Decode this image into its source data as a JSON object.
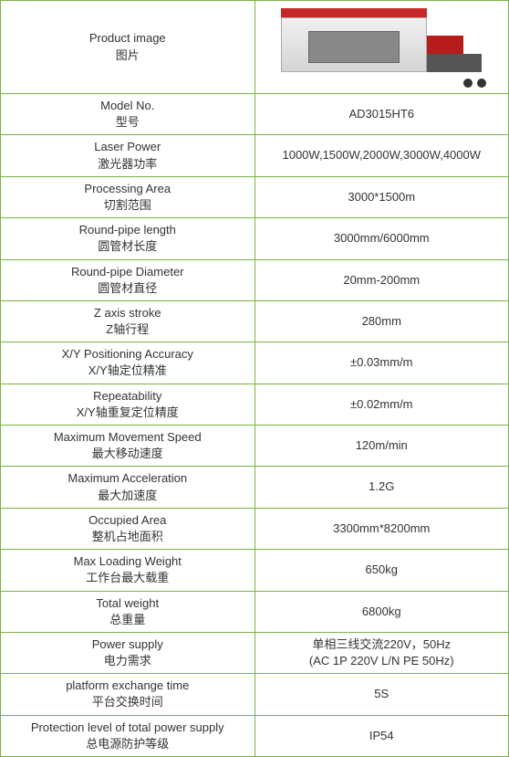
{
  "header": {
    "label_en": "Product image",
    "label_cn": "图片"
  },
  "rows": [
    {
      "en": "Model No.",
      "cn": "型号",
      "value": "AD3015HT6"
    },
    {
      "en": "Laser Power",
      "cn": "激光器功率",
      "value": "1000W,1500W,2000W,3000W,4000W"
    },
    {
      "en": "Processing Area",
      "cn": "切割范围",
      "value": "3000*1500m"
    },
    {
      "en": "Round-pipe length",
      "cn": "圆管材长度",
      "value": "3000mm/6000mm"
    },
    {
      "en": "Round-pipe Diameter",
      "cn": "圆管材直径",
      "value": "20mm-200mm"
    },
    {
      "en": "Z axis stroke",
      "cn": "Z轴行程",
      "value": "280mm"
    },
    {
      "en": "X/Y Positioning Accuracy",
      "cn": "X/Y轴定位精准",
      "value": "±0.03mm/m"
    },
    {
      "en": "Repeatability",
      "cn": "X/Y轴重复定位精度",
      "value": "±0.02mm/m"
    },
    {
      "en": "Maximum Movement Speed",
      "cn": "最大移动速度",
      "value": "120m/min"
    },
    {
      "en": "Maximum Acceleration",
      "cn": "最大加速度",
      "value": "1.2G"
    },
    {
      "en": "Occupied Area",
      "cn": "整机占地面积",
      "value": "3300mm*8200mm"
    },
    {
      "en": "Max Loading Weight",
      "cn": "工作台最大载重",
      "value": "650kg"
    },
    {
      "en": "Total weight",
      "cn": "总重量",
      "value": "6800kg"
    },
    {
      "en": "Power supply",
      "cn": "电力需求",
      "value": "单相三线交流220V，50Hz\n(AC 1P 220V L/N PE 50Hz)"
    },
    {
      "en": "platform exchange  time",
      "cn": "平台交换时间",
      "value": "5S"
    },
    {
      "en": "Protection level of total power supply",
      "cn": "总电源防护等级",
      "value": "IP54"
    }
  ],
  "style": {
    "border_color": "#7cb342",
    "text_color": "#333333",
    "font_size": 13
  }
}
